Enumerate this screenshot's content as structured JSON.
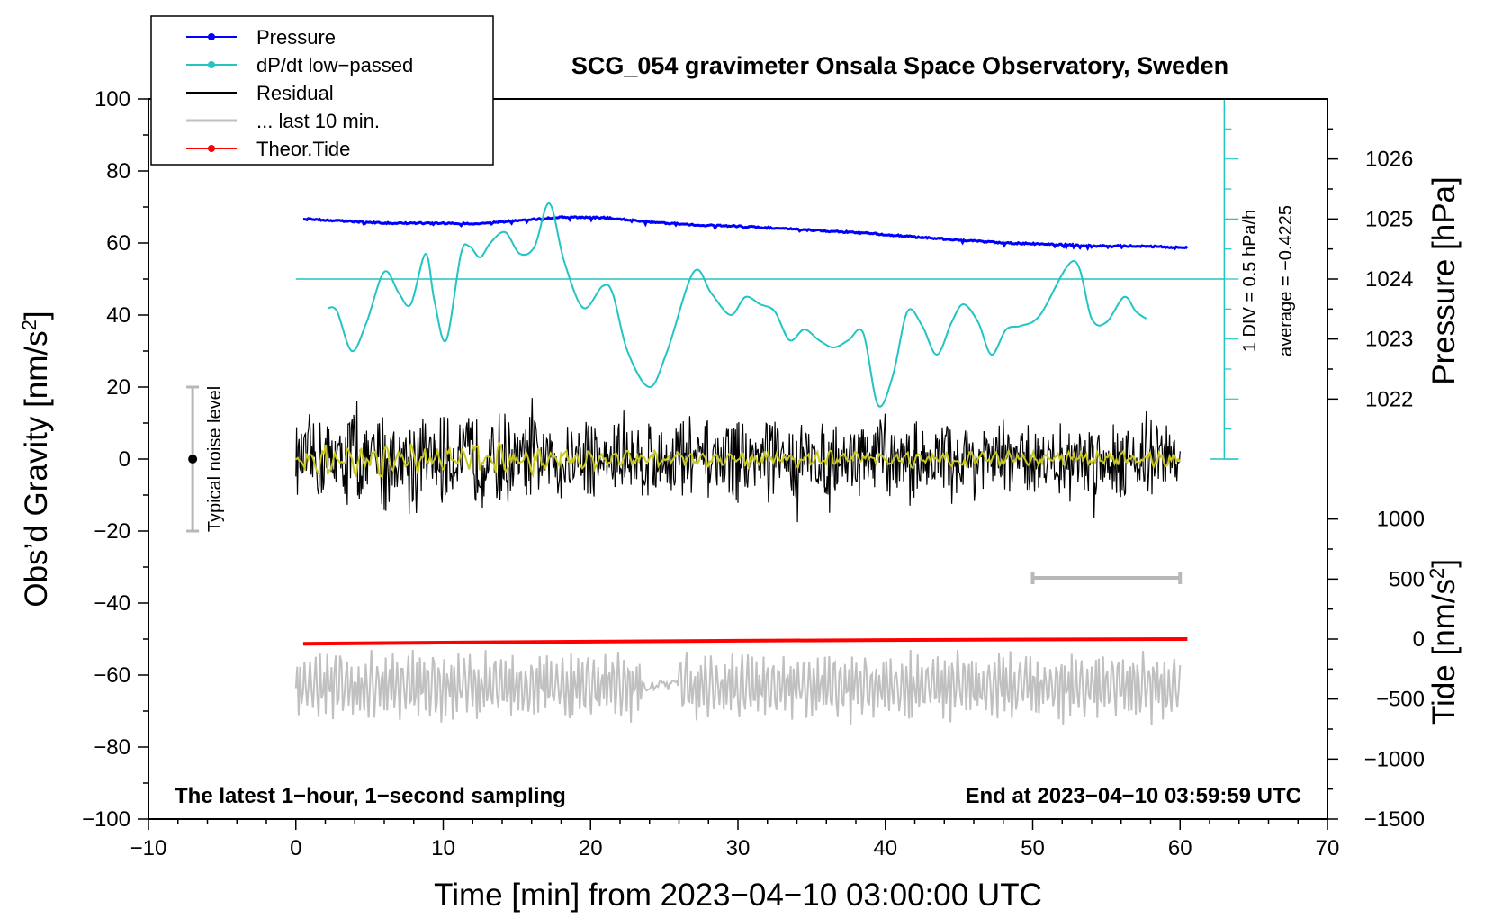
{
  "chart_data": {
    "type": "line",
    "title": "SCG_054 gravimeter Onsala Space Observatory, Sweden",
    "xlabel": "Time [min] from 2023−04−10 03:00:00 UTC",
    "ylabel_left": "Obs’d Gravity [nm/s",
    "ylabel_left_sup": "2",
    "ylabel_left_tail": "]",
    "ylabel_right_pressure": "Pressure [hPa]",
    "ylabel_right_tide": "Tide [nm/s",
    "ylabel_right_tide_sup": "2",
    "ylabel_right_tide_tail": "]",
    "xlim": [
      -10,
      70
    ],
    "ylim": [
      -100,
      100
    ],
    "x_ticks": [
      {
        "value": -10,
        "label": "−10"
      },
      {
        "value": 0,
        "label": "0"
      },
      {
        "value": 10,
        "label": "10"
      },
      {
        "value": 20,
        "label": "20"
      },
      {
        "value": 30,
        "label": "30"
      },
      {
        "value": 40,
        "label": "40"
      },
      {
        "value": 50,
        "label": "50"
      },
      {
        "value": 60,
        "label": "60"
      },
      {
        "value": 70,
        "label": "70"
      }
    ],
    "y_ticks": [
      {
        "value": 100,
        "label": "100"
      },
      {
        "value": 80,
        "label": "80"
      },
      {
        "value": 60,
        "label": "60"
      },
      {
        "value": 40,
        "label": "40"
      },
      {
        "value": 20,
        "label": "20"
      },
      {
        "value": 0,
        "label": "0"
      },
      {
        "value": -20,
        "label": "−20"
      },
      {
        "value": -40,
        "label": "−40"
      },
      {
        "value": -60,
        "label": "−60"
      },
      {
        "value": -80,
        "label": "−80"
      },
      {
        "value": -100,
        "label": "−100"
      }
    ],
    "pressure_axis": {
      "note": "1 hPa = 16.67 on gravity scale; 1024 hPa at gravity 50",
      "ticks": [
        {
          "value": 1026,
          "label": "1026"
        },
        {
          "value": 1025,
          "label": "1025"
        },
        {
          "value": 1024,
          "label": "1024"
        },
        {
          "value": 1023,
          "label": "1023"
        },
        {
          "value": 1022,
          "label": "1022"
        }
      ]
    },
    "tide_axis": {
      "note": "500 nm/s2 = 16.67 on gravity scale; 0 at gravity -50",
      "ticks": [
        {
          "value": 1000,
          "label": "1000"
        },
        {
          "value": 500,
          "label": "500"
        },
        {
          "value": 0,
          "label": "0"
        },
        {
          "value": -500,
          "label": "−500"
        },
        {
          "value": -1000,
          "label": "−1000"
        },
        {
          "value": -1500,
          "label": "−1500"
        }
      ]
    },
    "series": [
      {
        "name": "Pressure",
        "color": "#0000ff",
        "unit": "hPa",
        "x": [
          0.5,
          3,
          6,
          9,
          12,
          15,
          18,
          21,
          24,
          27,
          30,
          33,
          36,
          39,
          42,
          45,
          48,
          51,
          54,
          57,
          60.5
        ],
        "values": [
          1025.0,
          1024.97,
          1024.93,
          1024.93,
          1024.92,
          1024.97,
          1025.03,
          1025.02,
          1024.95,
          1024.9,
          1024.88,
          1024.84,
          1024.8,
          1024.76,
          1024.7,
          1024.65,
          1024.6,
          1024.58,
          1024.55,
          1024.55,
          1024.52
        ]
      },
      {
        "name": "dP/dt low−passed",
        "color": "#22c4c4",
        "unit": "gravity-scale",
        "x": [
          2.2,
          2.8,
          3.8,
          4.8,
          6.0,
          7.0,
          7.8,
          8.8,
          9.4,
          10.2,
          11.2,
          11.8,
          12.5,
          13.2,
          14.2,
          15.2,
          16.2,
          17.2,
          18.2,
          19.5,
          20.8,
          21.5,
          22.5,
          24.0,
          25.2,
          27.0,
          28.2,
          29.5,
          30.5,
          31.5,
          32.5,
          33.5,
          34.5,
          35.5,
          36.5,
          37.5,
          38.5,
          39.5,
          40.5,
          41.5,
          42.5,
          43.5,
          44.5,
          45.3,
          46.3,
          47.2,
          48.2,
          49.2,
          50.5,
          52.8,
          54.0,
          55.0,
          56.2,
          57.0,
          57.7
        ],
        "values": [
          42,
          41,
          30,
          38,
          52,
          46,
          43,
          57,
          44,
          33,
          57,
          59,
          56,
          60,
          63,
          57,
          59,
          71,
          55,
          42,
          48,
          46,
          30,
          20,
          30,
          52,
          46,
          40,
          45,
          43,
          41,
          33,
          36,
          33,
          31,
          33,
          35,
          15,
          23,
          41,
          37,
          29,
          38,
          43,
          38,
          29,
          36,
          37,
          40,
          55,
          39,
          38,
          45,
          41,
          39
        ]
      },
      {
        "name": "Residual",
        "color": "#000000",
        "unit": "nm/s2",
        "x": [
          0,
          2,
          4,
          6,
          8,
          10,
          12,
          14,
          16,
          18,
          20,
          22,
          24,
          26,
          28,
          30,
          32,
          34,
          36,
          38,
          40,
          42,
          44,
          46,
          48,
          50,
          52,
          54,
          56,
          58,
          60
        ],
        "values": [
          0,
          12,
          -18,
          18,
          -14,
          15,
          -15,
          17,
          -13,
          12,
          -11,
          12,
          -14,
          13,
          -10,
          14,
          -16,
          12,
          -10,
          11,
          -13,
          10,
          -9,
          11,
          -10,
          10,
          -9,
          11,
          -10,
          10,
          0
        ]
      },
      {
        "name": "... last 10 min.",
        "color": "#c0c0c0",
        "unit": "nm/s2",
        "x": [
          0,
          2,
          4,
          6,
          8,
          10,
          12,
          14,
          16,
          18,
          20,
          22,
          24,
          26,
          28,
          30,
          32,
          34,
          36,
          38,
          40,
          42,
          44,
          46,
          48,
          50,
          52,
          54,
          56,
          58,
          60
        ],
        "values": [
          -70,
          -54,
          -72,
          -56,
          -70,
          -55,
          -71,
          -57,
          -69,
          -55,
          -70,
          -58,
          -68,
          -56,
          -62,
          -54,
          -72,
          -56,
          -70,
          -54,
          -72,
          -56,
          -68,
          -55,
          -70,
          -56,
          -68,
          -54,
          -70,
          -56,
          -60
        ]
      },
      {
        "name": "Theor.Tide",
        "color": "#ff0000",
        "unit": "nm/s2",
        "x": [
          0.5,
          10,
          20,
          30,
          40,
          50,
          60.5
        ],
        "values": [
          -40,
          -30,
          -22,
          -14,
          -8,
          -4,
          0
        ]
      },
      {
        "name": "Residual low-passed",
        "color": "#c8c820",
        "unit": "nm/s2",
        "x": [
          0,
          2,
          4,
          6,
          8,
          10,
          12,
          14,
          16,
          18,
          20,
          22,
          24,
          26,
          28,
          30,
          32,
          34,
          36,
          38,
          40,
          42,
          44,
          46,
          48,
          50,
          52,
          54,
          56,
          58,
          60
        ],
        "values": [
          0,
          4,
          -4,
          5,
          -4,
          3,
          -4,
          4,
          -3,
          2,
          -2,
          2,
          -1,
          1,
          -1,
          1,
          -1,
          1,
          -1,
          1,
          -1,
          1,
          -1,
          1,
          -1,
          1,
          -1,
          1,
          -1,
          1,
          0
        ]
      }
    ],
    "legend": {
      "position": "top-left",
      "entries": [
        {
          "label": "Pressure",
          "color": "#0000ff",
          "marker": true
        },
        {
          "label": "dP/dt low−passed",
          "color": "#22c4c4",
          "marker": true
        },
        {
          "label": "Residual",
          "color": "#000000",
          "marker": false
        },
        {
          "label": "... last 10 min.",
          "color": "#c0c0c0",
          "marker": false
        },
        {
          "label": "Theor.Tide",
          "color": "#ff0000",
          "marker": true
        }
      ]
    },
    "annotations": {
      "noise_label": "Typical noise level",
      "noise_range": [
        -20,
        20
      ],
      "noise_x": -7,
      "div_label": "1 DIV = 0.5 hPa/h",
      "average_label": "average = −0.4225",
      "dpdt_scale_x": 63,
      "dpdt_scale_range": [
        0,
        100
      ],
      "dpdt_zero_line": 50,
      "tenmin_bar": [
        50,
        60
      ],
      "tenmin_bar_y": -33,
      "bottom_left": "The latest 1−hour, 1−second sampling",
      "bottom_right": "End at 2023−04−10 03:59:59 UTC"
    }
  }
}
